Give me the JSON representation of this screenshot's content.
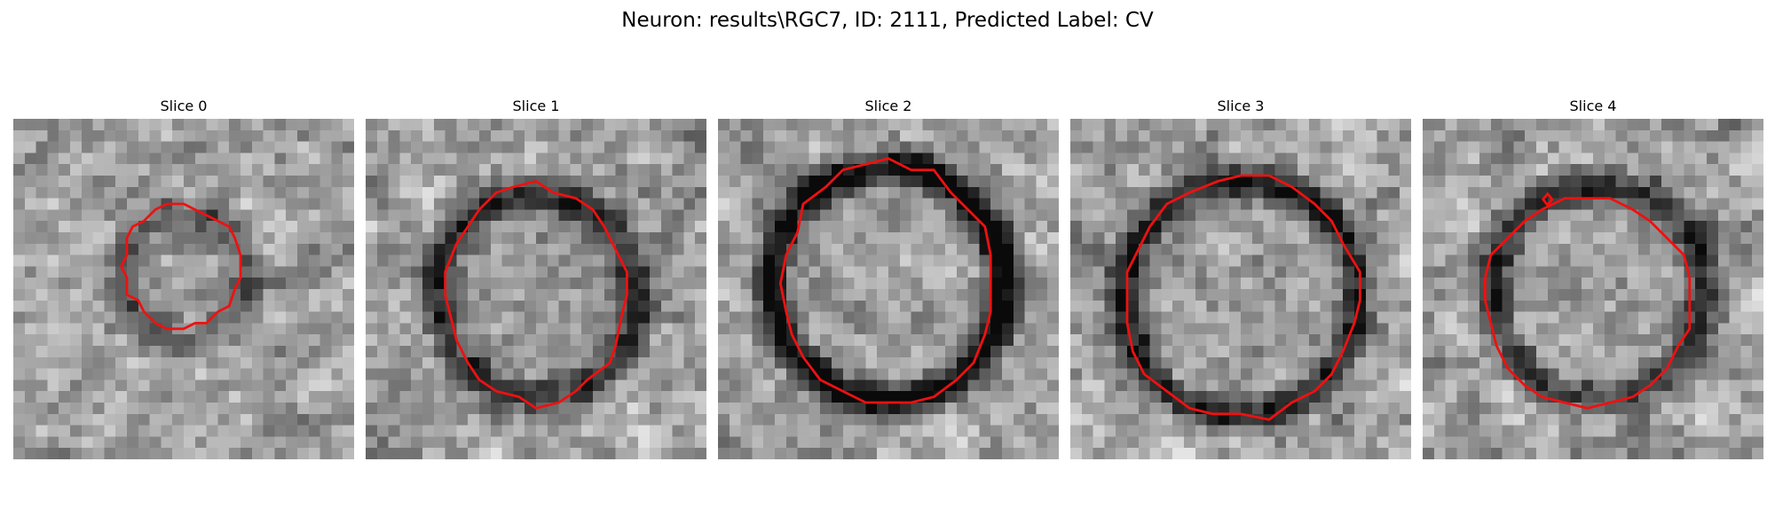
{
  "figure": {
    "suptitle": "Neuron: results\\RGC7, ID: 2111, Predicted Label: CV",
    "contour_color": "#ee1111"
  },
  "panels": [
    {
      "title": "Slice 0"
    },
    {
      "title": "Slice 1"
    },
    {
      "title": "Slice 2"
    },
    {
      "title": "Slice 3"
    },
    {
      "title": "Slice 4"
    }
  ]
}
